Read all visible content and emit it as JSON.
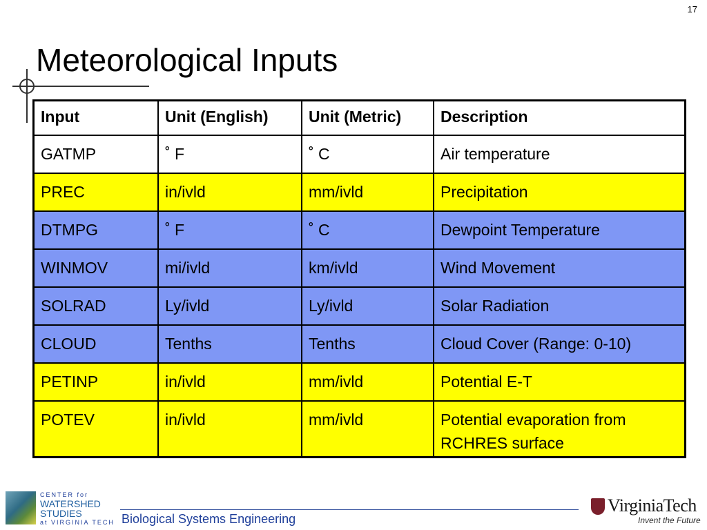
{
  "slide": {
    "page_number": "17",
    "title": "Meteorological Inputs"
  },
  "colors": {
    "white_row": "#ffffff",
    "yellow_row": "#ffff00",
    "blue_row": "#7f97f5"
  },
  "table": {
    "headers": [
      "Input",
      "Unit (English)",
      "Unit (Metric)",
      "Description"
    ],
    "rows": [
      {
        "cells": [
          "GATMP",
          "˚ F",
          "˚ C",
          "Air temperature"
        ],
        "color": "white_row"
      },
      {
        "cells": [
          "PREC",
          "in/ivld",
          "mm/ivld",
          "Precipitation"
        ],
        "color": "yellow_row"
      },
      {
        "cells": [
          "DTMPG",
          "˚ F",
          "˚ C",
          "Dewpoint Temperature"
        ],
        "color": "blue_row"
      },
      {
        "cells": [
          "WINMOV",
          "mi/ivld",
          "km/ivld",
          "Wind Movement"
        ],
        "color": "blue_row"
      },
      {
        "cells": [
          "SOLRAD",
          "Ly/ivld",
          "Ly/ivld",
          "Solar Radiation"
        ],
        "color": "blue_row"
      },
      {
        "cells": [
          "CLOUD",
          "Tenths",
          "Tenths",
          "Cloud Cover (Range: 0-10)"
        ],
        "color": "blue_row"
      },
      {
        "cells": [
          "PETINP",
          "in/ivld",
          "mm/ivld",
          "Potential E-T"
        ],
        "color": "yellow_row"
      },
      {
        "cells": [
          "POTEV",
          "in/ivld",
          "mm/ivld",
          "Potential evaporation from RCHRES surface"
        ],
        "color": "yellow_row"
      }
    ]
  },
  "footer": {
    "org_label": "Biological Systems Engineering",
    "cws_logo": {
      "line1": "CENTER for",
      "line2": "WATERSHED",
      "line3": "STUDIES",
      "line4": "at VIRGINIA TECH"
    },
    "vt_logo": {
      "name": "VirginiaTech",
      "tagline": "Invent the Future"
    }
  }
}
